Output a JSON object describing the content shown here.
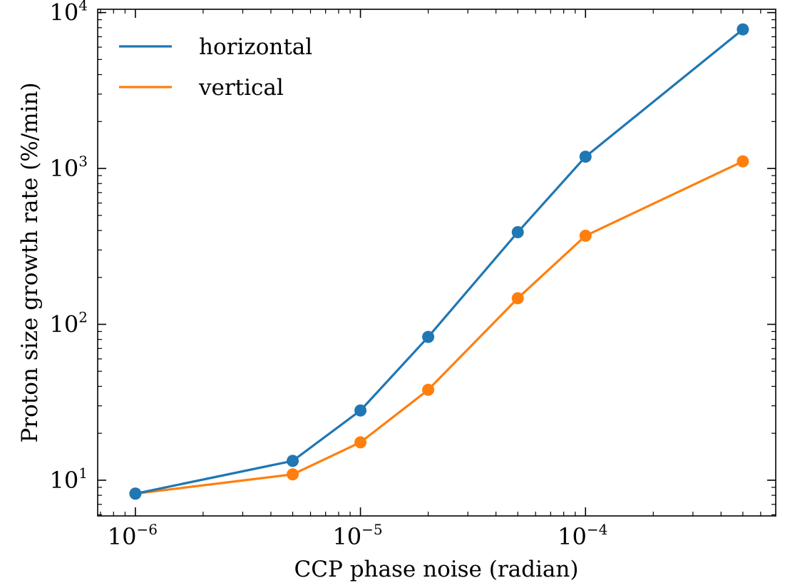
{
  "chart_data": {
    "type": "line",
    "title": "",
    "xlabel": "CCP phase noise (radian)",
    "ylabel": "Proton size growth rate (%/min)",
    "x_scale": "log",
    "y_scale": "log",
    "xlim": [
      6.8e-07,
      0.0007
    ],
    "ylim": [
      5.9,
      10500
    ],
    "x": [
      1e-06,
      5e-06,
      1e-05,
      2e-05,
      5e-05,
      0.0001,
      0.0005
    ],
    "series": [
      {
        "name": "horizontal",
        "color": "#1f77b4",
        "values": [
          8.2,
          13.3,
          28,
          83,
          390,
          1190,
          7800
        ]
      },
      {
        "name": "vertical",
        "color": "#ff7f0e",
        "values": [
          8.2,
          10.9,
          17.5,
          38,
          147,
          370,
          1110
        ]
      }
    ],
    "x_ticks": [
      {
        "value": 1e-06,
        "base": "10",
        "exp": "−6"
      },
      {
        "value": 1e-05,
        "base": "10",
        "exp": "−5"
      },
      {
        "value": 0.0001,
        "base": "10",
        "exp": "−4"
      }
    ],
    "y_ticks": [
      {
        "value": 10,
        "base": "10",
        "exp": "1"
      },
      {
        "value": 100,
        "base": "10",
        "exp": "2"
      },
      {
        "value": 1000,
        "base": "10",
        "exp": "3"
      },
      {
        "value": 10000,
        "base": "10",
        "exp": "4"
      }
    ],
    "legend": "top-left",
    "grid": false
  }
}
